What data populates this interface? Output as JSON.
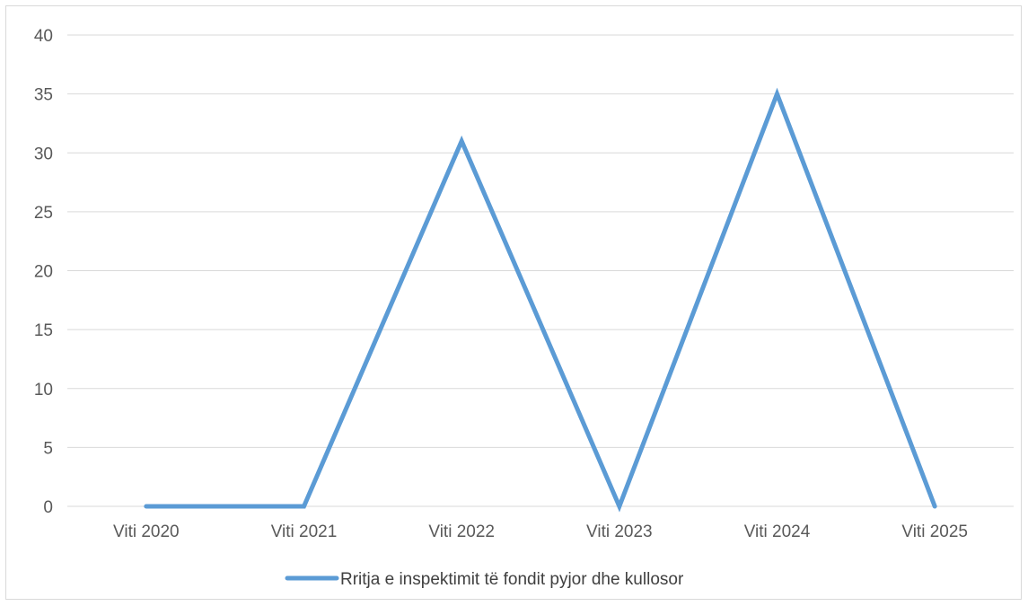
{
  "chart_data": {
    "type": "line",
    "title": "",
    "xlabel": "",
    "ylabel": "",
    "categories": [
      "Viti 2020",
      "Viti 2021",
      "Viti 2022",
      "Viti 2023",
      "Viti 2024",
      "Viti 2025"
    ],
    "series": [
      {
        "name": "Rritja e inspektimit të fondit pyjor dhe kullosor",
        "values": [
          0,
          0,
          31,
          0,
          35,
          0
        ],
        "color": "#5b9bd5"
      }
    ],
    "ylim": [
      0,
      40
    ],
    "yticks": [
      0,
      5,
      10,
      15,
      20,
      25,
      30,
      35,
      40
    ],
    "grid": true,
    "legend": "bottom"
  }
}
